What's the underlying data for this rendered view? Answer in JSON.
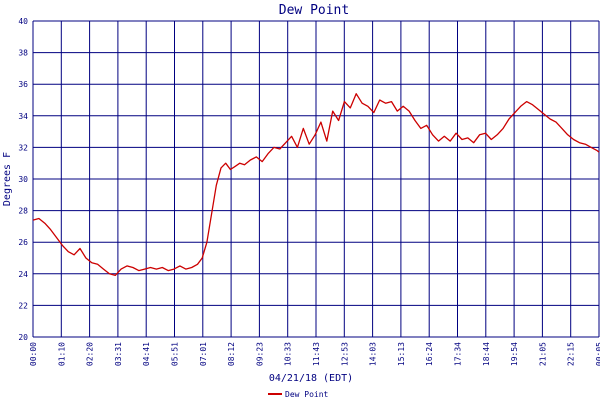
{
  "chart_data": {
    "type": "line",
    "title": "Dew Point",
    "xlabel": "04/21/18 (EDT)",
    "ylabel": "Degrees F",
    "ylim": [
      20,
      40
    ],
    "yticks": [
      20,
      22,
      24,
      26,
      28,
      30,
      32,
      34,
      36,
      38,
      40
    ],
    "xticks": [
      "00:00",
      "01:10",
      "02:20",
      "03:31",
      "04:41",
      "05:51",
      "07:01",
      "08:12",
      "09:23",
      "10:33",
      "11:43",
      "12:53",
      "14:03",
      "15:13",
      "16:24",
      "17:34",
      "18:44",
      "19:54",
      "21:05",
      "22:15",
      "00:05"
    ],
    "grid": true,
    "legend": {
      "position": "bottom-center"
    },
    "colors": {
      "series": "#cc0000",
      "grid": "#000080",
      "text": "#000080"
    },
    "series": [
      {
        "name": "Dew Point",
        "x_unit": "hours since 00:00 EDT",
        "points": [
          [
            0.0,
            27.4
          ],
          [
            0.25,
            27.5
          ],
          [
            0.5,
            27.2
          ],
          [
            0.75,
            26.8
          ],
          [
            1.0,
            26.3
          ],
          [
            1.25,
            25.8
          ],
          [
            1.5,
            25.4
          ],
          [
            1.75,
            25.2
          ],
          [
            2.0,
            25.6
          ],
          [
            2.25,
            25.0
          ],
          [
            2.5,
            24.7
          ],
          [
            2.75,
            24.6
          ],
          [
            3.0,
            24.3
          ],
          [
            3.25,
            24.0
          ],
          [
            3.5,
            23.9
          ],
          [
            3.75,
            24.3
          ],
          [
            4.0,
            24.5
          ],
          [
            4.25,
            24.4
          ],
          [
            4.5,
            24.2
          ],
          [
            4.75,
            24.3
          ],
          [
            5.0,
            24.4
          ],
          [
            5.25,
            24.3
          ],
          [
            5.5,
            24.4
          ],
          [
            5.75,
            24.2
          ],
          [
            6.0,
            24.3
          ],
          [
            6.25,
            24.5
          ],
          [
            6.5,
            24.3
          ],
          [
            6.75,
            24.4
          ],
          [
            7.0,
            24.6
          ],
          [
            7.2,
            25.0
          ],
          [
            7.4,
            26.0
          ],
          [
            7.6,
            27.8
          ],
          [
            7.8,
            29.6
          ],
          [
            8.0,
            30.7
          ],
          [
            8.2,
            31.0
          ],
          [
            8.4,
            30.6
          ],
          [
            8.6,
            30.8
          ],
          [
            8.8,
            31.0
          ],
          [
            9.0,
            30.9
          ],
          [
            9.25,
            31.2
          ],
          [
            9.5,
            31.4
          ],
          [
            9.75,
            31.1
          ],
          [
            10.0,
            31.6
          ],
          [
            10.25,
            32.0
          ],
          [
            10.5,
            31.9
          ],
          [
            10.75,
            32.3
          ],
          [
            11.0,
            32.7
          ],
          [
            11.25,
            32.0
          ],
          [
            11.5,
            33.2
          ],
          [
            11.75,
            32.2
          ],
          [
            12.0,
            32.8
          ],
          [
            12.25,
            33.6
          ],
          [
            12.5,
            32.4
          ],
          [
            12.75,
            34.3
          ],
          [
            13.0,
            33.7
          ],
          [
            13.25,
            34.9
          ],
          [
            13.5,
            34.5
          ],
          [
            13.75,
            35.4
          ],
          [
            14.0,
            34.8
          ],
          [
            14.25,
            34.6
          ],
          [
            14.5,
            34.2
          ],
          [
            14.75,
            35.0
          ],
          [
            15.0,
            34.8
          ],
          [
            15.25,
            34.9
          ],
          [
            15.5,
            34.3
          ],
          [
            15.75,
            34.6
          ],
          [
            16.0,
            34.3
          ],
          [
            16.25,
            33.7
          ],
          [
            16.5,
            33.2
          ],
          [
            16.75,
            33.4
          ],
          [
            17.0,
            32.8
          ],
          [
            17.25,
            32.4
          ],
          [
            17.5,
            32.7
          ],
          [
            17.75,
            32.4
          ],
          [
            18.0,
            32.9
          ],
          [
            18.25,
            32.5
          ],
          [
            18.5,
            32.6
          ],
          [
            18.75,
            32.3
          ],
          [
            19.0,
            32.8
          ],
          [
            19.25,
            32.9
          ],
          [
            19.5,
            32.5
          ],
          [
            19.75,
            32.8
          ],
          [
            20.0,
            33.2
          ],
          [
            20.25,
            33.8
          ],
          [
            20.5,
            34.2
          ],
          [
            20.75,
            34.6
          ],
          [
            21.0,
            34.9
          ],
          [
            21.25,
            34.7
          ],
          [
            21.5,
            34.4
          ],
          [
            21.75,
            34.1
          ],
          [
            22.0,
            33.8
          ],
          [
            22.25,
            33.6
          ],
          [
            22.5,
            33.2
          ],
          [
            22.75,
            32.8
          ],
          [
            23.0,
            32.5
          ],
          [
            23.25,
            32.3
          ],
          [
            23.5,
            32.2
          ],
          [
            23.75,
            32.0
          ],
          [
            24.0,
            31.8
          ],
          [
            24.08,
            31.7
          ]
        ]
      }
    ]
  }
}
